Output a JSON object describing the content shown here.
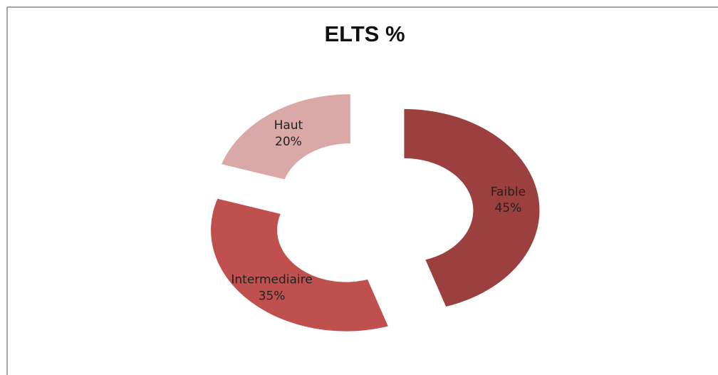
{
  "chart_data": {
    "type": "donut",
    "title": "ELTS %",
    "categories": [
      "Faible",
      "Intermediaire",
      "Haut"
    ],
    "values": [
      45,
      35,
      20
    ],
    "value_labels": [
      "45%",
      "35%",
      "20%"
    ],
    "colors": [
      "#9b403e",
      "#c0504d",
      "#d9a8a7"
    ]
  }
}
